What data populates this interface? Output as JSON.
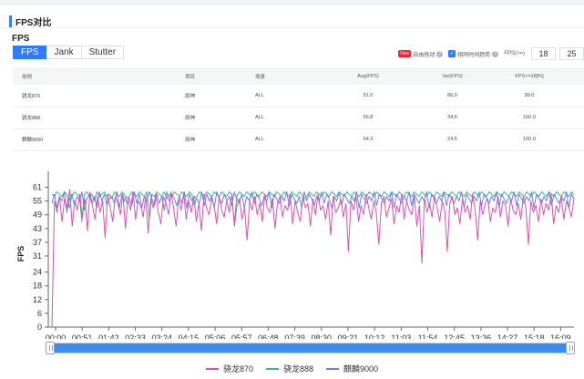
{
  "section_title": "FPS对比",
  "sub_title": "FPS",
  "tabs": [
    {
      "label": "FPS",
      "active": true
    },
    {
      "label": "Jank",
      "active": false
    },
    {
      "label": "Stutter",
      "active": false
    }
  ],
  "options": {
    "new_badge": "New",
    "auto_align": "自由拖动",
    "same_trend": "相同时间趋势",
    "fps_ge_label": "FPS(>=)",
    "fps_threshold_1": "18",
    "fps_threshold_2": "25"
  },
  "table": {
    "headers": [
      "用例",
      "项目",
      "场景",
      "Avg(FPS)",
      "Var(FPS)",
      "FPS>=18[%]"
    ],
    "rows": [
      [
        "骁龙870",
        "原神",
        "ALL",
        "51.0",
        "86.0",
        "99.0"
      ],
      [
        "骁龙888",
        "原神",
        "ALL",
        "56.8",
        "34.6",
        "100.0"
      ],
      [
        "麒麟9000",
        "原神",
        "ALL",
        "54.3",
        "24.5",
        "100.0"
      ]
    ]
  },
  "colors": {
    "accent": "#2f7bff",
    "snapdragon870": "#d454b3",
    "snapdragon888": "#3fb39a",
    "kirin9000": "#6b7fe0"
  },
  "chart_data": {
    "type": "line",
    "ylabel": "FPS",
    "xlabel": "",
    "yticks": [
      0,
      6,
      12,
      18,
      24,
      31,
      37,
      43,
      49,
      55,
      61
    ],
    "ylim": [
      0,
      64
    ],
    "xticks": [
      "00:00",
      "00:51",
      "01:42",
      "02:33",
      "03:24",
      "04:15",
      "05:06",
      "05:57",
      "06:48",
      "07:39",
      "08:30",
      "09:21",
      "10:12",
      "11:03",
      "11:54",
      "12:45",
      "13:36",
      "14:27",
      "15:18",
      "16:09"
    ],
    "duration_seconds": 1020,
    "legend_position": "bottom",
    "series": [
      {
        "name": "骁龙870",
        "color": "#d454b3",
        "values": [
          0,
          55,
          50,
          57,
          46,
          56,
          52,
          60,
          44,
          55,
          51,
          58,
          48,
          56,
          42,
          59,
          53,
          47,
          57,
          50,
          55,
          39,
          58,
          52,
          46,
          57,
          54,
          49,
          58,
          43,
          56,
          51,
          59,
          47,
          55,
          53,
          48,
          57,
          41,
          56,
          52,
          58,
          50,
          45,
          57,
          54,
          49,
          59,
          52,
          44,
          56,
          51,
          58,
          47,
          55,
          50,
          57,
          46,
          54,
          42,
          58,
          52,
          49,
          56,
          53,
          45,
          57,
          51,
          48,
          55,
          50,
          58,
          44,
          53,
          56,
          47,
          52,
          38,
          55,
          51,
          57,
          49,
          54,
          46,
          58,
          52,
          50,
          56,
          43,
          54,
          57,
          48,
          53,
          51,
          58,
          45,
          55,
          50,
          46,
          57,
          52,
          54,
          44,
          56,
          49,
          58,
          51,
          53,
          47,
          55,
          40,
          57,
          50,
          52,
          56,
          48,
          54,
          33,
          55,
          51,
          57,
          46,
          53,
          49,
          58,
          52,
          47,
          55,
          50,
          36,
          54,
          57,
          48,
          52,
          56,
          45,
          53,
          50,
          58,
          47,
          55,
          51,
          49,
          57,
          44,
          53,
          28,
          56,
          50,
          54,
          48,
          57,
          52,
          46,
          55,
          51,
          33,
          54,
          57,
          49,
          52,
          45,
          56,
          50,
          53,
          47,
          58,
          51,
          38,
          55,
          49,
          54,
          56,
          46,
          52,
          50,
          57,
          48,
          55,
          53,
          44,
          56,
          51,
          49,
          54,
          47,
          57,
          52,
          36,
          55,
          50,
          53,
          46,
          56,
          49,
          54,
          51,
          58,
          45,
          53,
          50,
          57,
          47,
          55,
          52,
          48,
          56
        ]
      },
      {
        "name": "骁龙888",
        "color": "#3fb39a",
        "values": [
          58,
          57,
          59,
          58,
          57,
          59,
          58,
          52,
          57,
          59,
          58,
          57,
          46,
          58,
          59,
          57,
          58,
          55,
          59,
          57,
          58,
          59,
          57,
          58,
          56,
          59,
          58,
          57,
          59,
          58,
          54,
          57,
          59,
          58,
          57,
          59,
          58,
          57,
          59,
          47,
          58,
          57,
          59,
          58,
          57,
          59,
          56,
          58,
          57,
          59,
          58,
          57,
          59,
          58,
          57,
          59,
          58,
          53,
          57,
          59,
          58,
          57,
          59,
          58,
          57,
          59,
          58,
          57,
          59,
          58,
          57,
          59,
          58,
          45,
          57,
          59,
          58,
          57,
          59,
          58,
          57,
          59,
          58,
          57,
          59,
          58,
          57,
          59,
          58,
          57,
          59,
          58,
          57,
          59,
          58,
          57,
          59,
          58,
          57,
          59,
          58,
          56,
          57,
          59,
          58,
          57,
          59,
          58,
          57,
          59,
          58,
          57,
          59,
          58,
          57,
          59,
          58,
          57,
          59,
          58,
          57,
          59,
          58,
          57,
          59,
          58,
          57,
          59,
          58,
          57,
          59,
          58,
          57,
          59,
          58,
          57,
          59,
          58,
          57,
          59,
          58,
          57,
          59,
          58,
          57,
          59,
          58,
          57,
          59,
          58,
          57,
          59,
          58,
          57,
          59,
          58,
          57,
          59,
          58,
          57,
          59,
          58,
          57,
          59,
          58,
          57,
          59,
          58,
          57,
          59,
          58,
          57,
          59,
          58,
          57,
          59,
          58,
          57,
          59,
          58,
          57,
          59,
          58,
          57,
          59,
          58,
          57,
          59,
          58,
          57,
          59,
          58,
          57,
          59,
          58,
          57,
          59,
          58,
          57,
          59,
          58,
          57,
          59,
          58,
          57,
          59,
          58,
          57,
          59,
          58
        ]
      },
      {
        "name": "麒麟9000",
        "color": "#6b7fe0",
        "values": [
          54,
          58,
          52,
          57,
          55,
          59,
          50,
          56,
          58,
          53,
          57,
          55,
          59,
          51,
          56,
          58,
          54,
          57,
          52,
          59,
          55,
          58,
          53,
          56,
          57,
          54,
          59,
          52,
          58,
          55,
          57,
          56,
          53,
          59,
          54,
          58,
          52,
          57,
          55,
          59,
          56,
          53,
          58,
          54,
          57,
          51,
          59,
          55,
          58,
          56,
          53,
          57,
          54,
          59,
          52,
          58,
          55,
          57,
          56,
          54,
          59,
          53,
          58,
          55,
          57,
          52,
          59,
          56,
          54,
          58,
          55,
          57,
          53,
          59,
          56,
          54,
          58,
          52,
          57,
          55,
          59,
          54,
          58,
          56,
          53,
          57,
          55,
          59,
          52,
          58,
          56,
          54,
          57,
          55,
          59,
          53,
          58,
          56,
          54,
          57,
          52,
          59,
          55,
          58,
          56,
          53,
          57,
          55,
          59,
          54,
          58,
          56,
          52,
          57,
          55,
          59,
          53,
          58,
          56,
          54,
          57,
          55,
          59,
          52,
          58,
          56,
          54,
          57,
          55,
          59,
          53,
          58,
          56,
          54,
          57,
          55,
          59,
          52,
          58,
          56,
          54,
          57,
          55,
          59,
          53,
          58,
          56,
          54,
          57,
          55,
          59,
          52,
          58,
          56,
          54,
          57,
          55,
          59,
          53,
          58,
          56,
          54,
          57,
          55,
          59,
          52,
          58,
          56,
          54,
          57,
          55,
          59,
          53,
          58,
          56,
          54,
          57,
          55,
          59,
          52,
          58,
          56,
          54,
          57,
          55,
          59,
          53,
          58,
          56,
          54,
          57,
          55,
          59,
          52,
          58,
          56,
          54,
          57,
          55,
          59,
          53,
          58,
          56,
          54,
          57,
          55,
          59,
          52,
          58,
          56
        ]
      }
    ]
  }
}
